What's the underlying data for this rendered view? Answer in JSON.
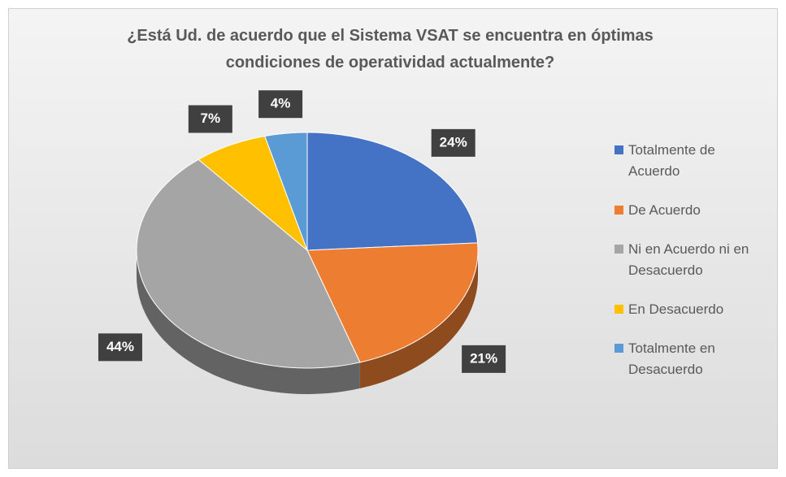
{
  "chart_data": {
    "type": "pie",
    "title": "¿Está Ud. de acuerdo que el Sistema VSAT se encuentra en óptimas condiciones de operatividad actualmente?",
    "categories": [
      "Totalmente de Acuerdo",
      "De Acuerdo",
      "Ni en Acuerdo ni en Desacuerdo",
      "En Desacuerdo",
      "Totalmente en Desacuerdo"
    ],
    "values": [
      24,
      21,
      44,
      7,
      4
    ],
    "value_labels": [
      "24%",
      "21%",
      "44%",
      "7%",
      "4%"
    ],
    "colors": [
      "#4472c4",
      "#ed7d31",
      "#a5a5a5",
      "#ffc000",
      "#5b9bd5"
    ],
    "legend": "right"
  }
}
